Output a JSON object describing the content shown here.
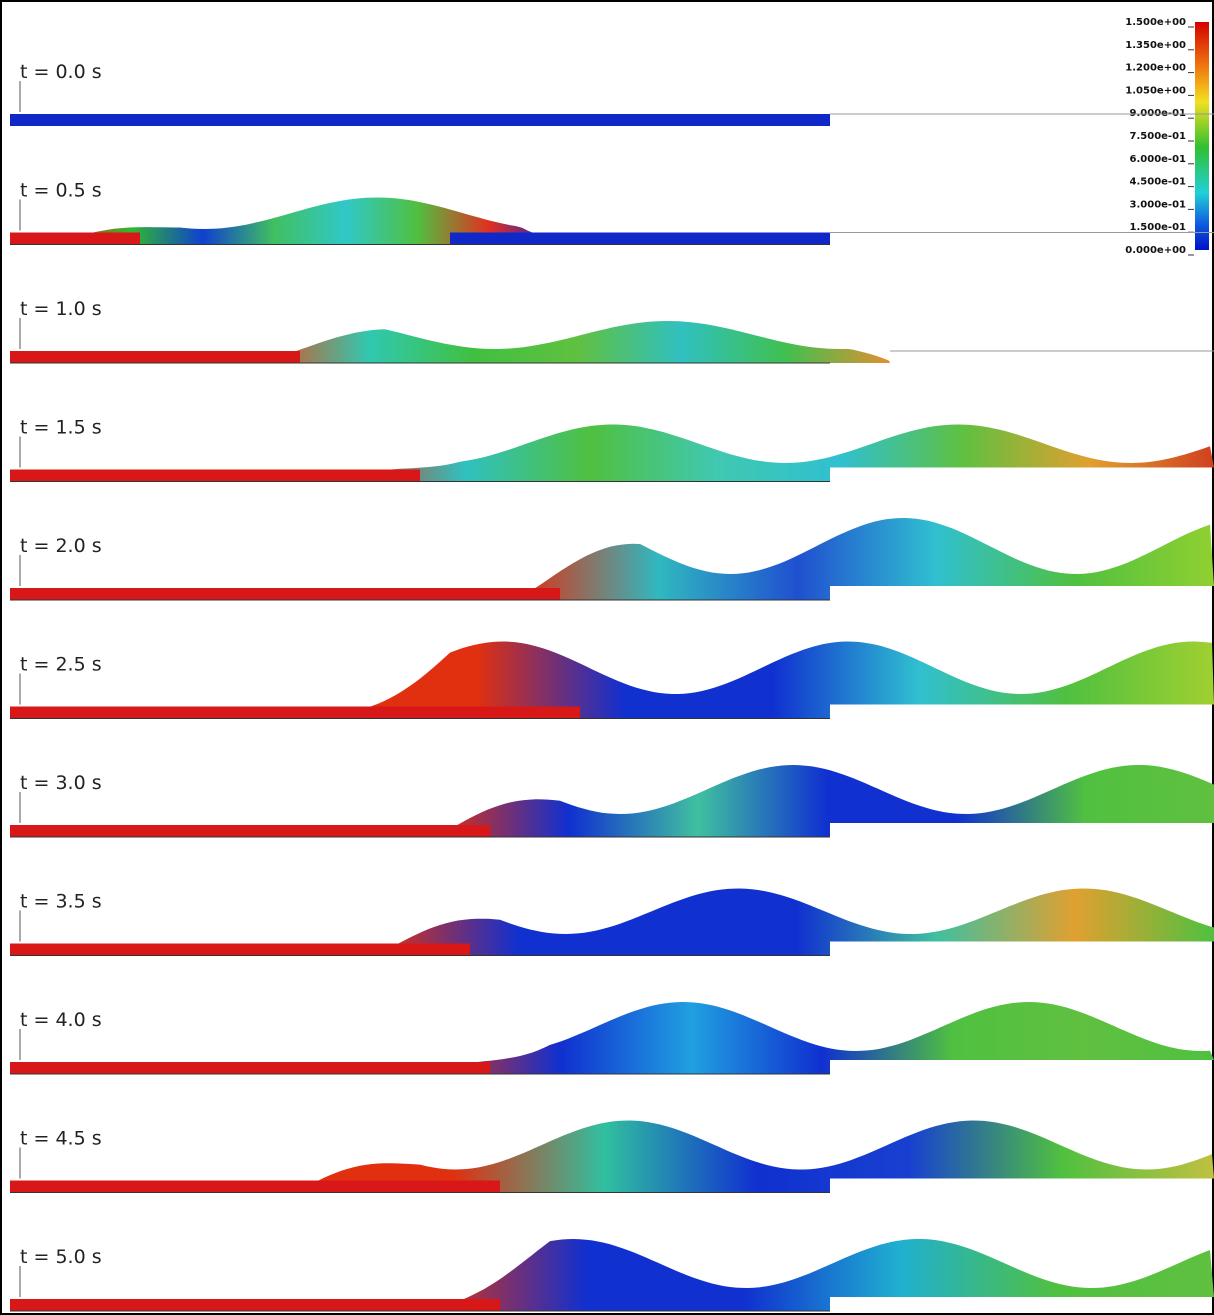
{
  "panels": [
    {
      "label": "t = 0.0 s"
    },
    {
      "label": "t = 0.5 s"
    },
    {
      "label": "t = 1.0 s"
    },
    {
      "label": "t = 1.5 s"
    },
    {
      "label": "t = 2.0 s"
    },
    {
      "label": "t = 2.5 s"
    },
    {
      "label": "t = 3.0 s"
    },
    {
      "label": "t = 3.5 s"
    },
    {
      "label": "t = 4.0 s"
    },
    {
      "label": "t = 4.5 s"
    },
    {
      "label": "t = 5.0 s"
    }
  ],
  "colorbar": {
    "labels": [
      "1.500e+00",
      "1.350e+00",
      "1.200e+00",
      "1.050e+00",
      "9.000e-01",
      "7.500e-01",
      "6.000e-01",
      "4.500e-01",
      "3.000e-01",
      "1.500e-01",
      "0.000e+00"
    ]
  }
}
